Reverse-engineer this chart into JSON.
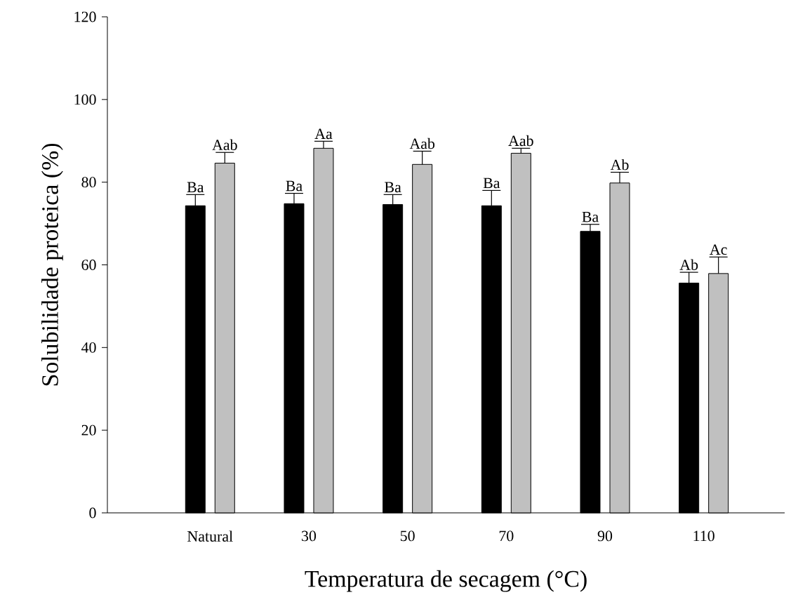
{
  "chart_data": {
    "type": "bar",
    "xlabel": "Temperatura de secagem (°C)",
    "ylabel": "Solubilidade proteica (%)",
    "categories": [
      "Natural",
      "30",
      "50",
      "70",
      "90",
      "110"
    ],
    "series": [
      {
        "color": "#000000",
        "values": [
          74.3,
          74.8,
          74.6,
          74.3,
          68.1,
          55.6
        ],
        "errors": [
          [
            74.3,
            77.0
          ],
          [
            74.8,
            77.3
          ],
          [
            74.6,
            77.0
          ],
          [
            74.3,
            78.0
          ],
          [
            68.1,
            69.8
          ],
          [
            55.6,
            58.2
          ]
        ]
      },
      {
        "color": "#c0c0c0",
        "values": [
          84.6,
          88.2,
          84.3,
          87.0,
          79.8,
          57.9
        ],
        "errors": [
          [
            84.6,
            87.2
          ],
          [
            88.2,
            89.9
          ],
          [
            84.3,
            87.5
          ],
          [
            87.0,
            88.2
          ],
          [
            79.8,
            82.4
          ],
          [
            57.9,
            61.9
          ]
        ]
      }
    ],
    "ylim": [
      0,
      120
    ],
    "yticks": [
      0,
      20,
      40,
      60,
      80,
      100,
      120
    ],
    "grid": false,
    "annotations": [
      "Ba",
      "Ba",
      "Ba",
      "Ba",
      "Ba",
      "Ab",
      "Aab",
      "Aa",
      "Aab",
      "Aab",
      "Ab",
      "Ac"
    ]
  }
}
